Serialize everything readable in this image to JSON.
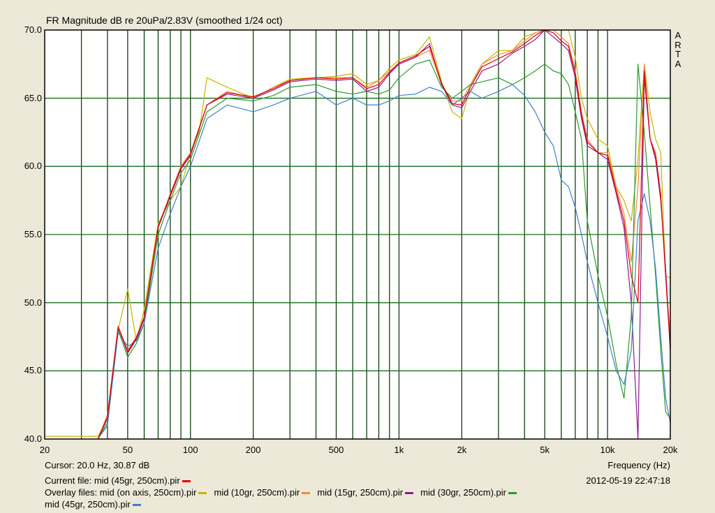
{
  "title": "FR Magnitude dB re 20uPa/2.83V (smoothed 1/24 oct)",
  "brand_letters": [
    "A",
    "R",
    "T",
    "A"
  ],
  "cursor_readout": "Cursor: 20.0 Hz, 30.87 dB",
  "current_file": {
    "label": "Current file:",
    "name": "mid (45gr, 250cm).pir",
    "color": "#e00000"
  },
  "timestamp": "2012-05-19  22:47:18",
  "overlay": {
    "label": "Overlay files:",
    "files": [
      {
        "name": "mid (on axis, 250cm).pir",
        "color": "#c8b400"
      },
      {
        "name": "mid (10gr, 250cm).pir",
        "color": "#f08840"
      },
      {
        "name": "mid (15gr, 250cm).pir",
        "color": "#8c1a8c"
      },
      {
        "name": "mid (30gr, 250cm).pir",
        "color": "#2a9a2a"
      },
      {
        "name": "mid (45gr, 250cm).pir",
        "color": "#4080c8"
      }
    ]
  },
  "colors": {
    "plot_bg": "#ffffff",
    "grid_h": "#1d6e1d",
    "grid_v": "#0f3f0f",
    "frame": "#000000"
  },
  "chart_data": {
    "type": "line",
    "title": "FR Magnitude dB re 20uPa/2.83V (smoothed 1/24 oct)",
    "xlabel": "Frequency (Hz)",
    "ylabel": "",
    "xscale": "log",
    "xlim": [
      20,
      20000
    ],
    "ylim": [
      40,
      70
    ],
    "grid": true,
    "x_ticks": [
      20,
      50,
      100,
      200,
      500,
      1000,
      2000,
      5000,
      10000,
      20000
    ],
    "x_tick_labels": [
      "20",
      "50",
      "100",
      "200",
      "500",
      "1k",
      "2k",
      "5k",
      "10k",
      "20k"
    ],
    "y_ticks": [
      40,
      45,
      50,
      55,
      60,
      65,
      70
    ],
    "y_tick_labels": [
      "40.0",
      "45.0",
      "50.0",
      "55.0",
      "60.0",
      "65.0",
      "70.0"
    ],
    "series": [
      {
        "name": "mid (on axis, 250cm).pir",
        "color": "#c8b400",
        "x": [
          20,
          28,
          36,
          40,
          45,
          50,
          55,
          60,
          70,
          80,
          90,
          100,
          110,
          120,
          150,
          200,
          250,
          300,
          400,
          500,
          600,
          700,
          800,
          900,
          1000,
          1200,
          1400,
          1600,
          1800,
          2000,
          2200,
          2500,
          3000,
          3500,
          4000,
          4500,
          5000,
          5500,
          6000,
          6500,
          7000,
          7500,
          8000,
          9000,
          10000,
          11000,
          12000,
          13000,
          14000,
          15000,
          16000,
          17000,
          18000,
          19000,
          20000
        ],
        "y": [
          40.2,
          40.2,
          40.2,
          41.5,
          48.0,
          51.0,
          47.2,
          49.5,
          55.8,
          57.5,
          58.5,
          61.0,
          62.5,
          66.5,
          65.8,
          65.0,
          65.8,
          66.4,
          66.5,
          66.6,
          66.8,
          66.0,
          66.3,
          67.2,
          67.8,
          68.2,
          69.5,
          66.2,
          64.0,
          63.5,
          65.8,
          67.5,
          68.5,
          68.5,
          69.5,
          69.8,
          70.0,
          70.0,
          70.0,
          70.0,
          68.0,
          65.0,
          63.5,
          62.0,
          61.5,
          58.5,
          57.5,
          56.0,
          60.5,
          67.5,
          64.0,
          62.0,
          61.0,
          52.0,
          51.8
        ]
      },
      {
        "name": "mid (10gr, 250cm).pir",
        "color": "#f08840",
        "x": [
          36,
          40,
          45,
          50,
          55,
          60,
          70,
          80,
          90,
          100,
          120,
          150,
          200,
          250,
          300,
          400,
          500,
          600,
          700,
          800,
          900,
          1000,
          1200,
          1400,
          1600,
          1800,
          2000,
          2200,
          2500,
          3000,
          3500,
          4000,
          4500,
          5000,
          5500,
          6000,
          6500,
          7000,
          7500,
          8000,
          9000,
          10000,
          11000,
          12000,
          13000,
          14000,
          15000,
          16000,
          17000,
          18000,
          19000,
          20000
        ],
        "y": [
          40.0,
          41.8,
          48.3,
          46.5,
          47.5,
          49.0,
          55.5,
          58.0,
          60.0,
          61.0,
          64.5,
          65.5,
          65.0,
          65.8,
          66.3,
          66.5,
          66.5,
          66.5,
          65.8,
          66.3,
          67.0,
          67.5,
          68.0,
          68.5,
          66.0,
          64.8,
          64.8,
          66.0,
          67.5,
          68.2,
          68.5,
          69.2,
          69.8,
          70.0,
          70.0,
          69.5,
          69.0,
          67.0,
          64.0,
          62.0,
          61.0,
          61.0,
          58.5,
          56.5,
          53.0,
          58.5,
          67.5,
          62.0,
          61.0,
          58.0,
          52.0,
          47.5
        ]
      },
      {
        "name": "mid (15gr, 250cm).pir",
        "color": "#8c1a8c",
        "x": [
          36,
          40,
          45,
          50,
          55,
          60,
          70,
          80,
          90,
          100,
          120,
          150,
          200,
          250,
          300,
          400,
          500,
          600,
          700,
          800,
          900,
          1000,
          1200,
          1400,
          1600,
          1800,
          2000,
          2200,
          2500,
          3000,
          3500,
          4000,
          4500,
          5000,
          5500,
          6000,
          6500,
          7000,
          7500,
          8000,
          9000,
          10000,
          11000,
          12000,
          13000,
          14000,
          15000,
          16000,
          17000,
          18000,
          19000,
          20000
        ],
        "y": [
          40.0,
          41.5,
          48.2,
          46.3,
          47.3,
          48.8,
          55.5,
          57.8,
          59.8,
          60.8,
          64.5,
          65.3,
          65.0,
          65.6,
          66.2,
          66.4,
          66.3,
          66.4,
          65.5,
          65.8,
          66.8,
          67.5,
          68.0,
          69.0,
          66.0,
          64.5,
          64.3,
          65.5,
          67.0,
          67.5,
          68.3,
          68.8,
          69.3,
          70.0,
          69.5,
          69.0,
          68.5,
          66.5,
          63.5,
          61.5,
          61.0,
          60.5,
          58.0,
          55.5,
          50.0,
          40.0,
          66.5,
          62.0,
          60.5,
          57.5,
          52.5,
          46.5
        ]
      },
      {
        "name": "mid (30gr, 250cm).pir",
        "color": "#2a9a2a",
        "x": [
          36,
          40,
          45,
          50,
          55,
          60,
          70,
          80,
          90,
          100,
          120,
          150,
          200,
          250,
          300,
          400,
          500,
          600,
          700,
          800,
          900,
          1000,
          1200,
          1400,
          1600,
          1800,
          2000,
          2200,
          2500,
          3000,
          3500,
          4000,
          4500,
          5000,
          5500,
          6000,
          6500,
          7000,
          7500,
          8000,
          9000,
          10000,
          11000,
          12000,
          13000,
          14000,
          15000,
          16000,
          17000,
          18000,
          19000,
          20000
        ],
        "y": [
          40.0,
          41.2,
          48.0,
          46.0,
          47.0,
          48.5,
          55.0,
          57.5,
          59.5,
          60.5,
          64.0,
          65.0,
          64.8,
          65.2,
          65.8,
          66.0,
          65.5,
          65.3,
          65.5,
          65.3,
          65.6,
          66.5,
          67.5,
          67.8,
          65.8,
          65.0,
          65.5,
          66.0,
          66.2,
          66.5,
          66.0,
          66.5,
          67.0,
          67.5,
          67.0,
          66.8,
          66.0,
          64.0,
          62.0,
          56.0,
          52.0,
          49.0,
          45.5,
          43.0,
          49.0,
          67.5,
          62.5,
          57.0,
          52.0,
          46.5,
          42.0,
          41.5
        ]
      },
      {
        "name": "mid (45gr, 250cm).pir",
        "color": "#4080c8",
        "x": [
          36,
          40,
          45,
          50,
          55,
          60,
          70,
          80,
          90,
          100,
          120,
          150,
          200,
          250,
          300,
          400,
          500,
          600,
          700,
          800,
          900,
          1000,
          1200,
          1400,
          1600,
          1800,
          2000,
          2200,
          2500,
          3000,
          3500,
          4000,
          4500,
          5000,
          5500,
          6000,
          6500,
          7000,
          7500,
          8000,
          9000,
          10000,
          11000,
          12000,
          13000,
          14000,
          15000,
          16000,
          17000,
          18000,
          19000,
          20000
        ],
        "y": [
          40.0,
          41.0,
          47.8,
          46.8,
          47.2,
          48.5,
          54.0,
          56.5,
          58.5,
          60.0,
          63.5,
          64.5,
          64.0,
          64.5,
          65.0,
          65.5,
          64.5,
          65.0,
          64.5,
          64.5,
          64.8,
          65.2,
          65.3,
          65.8,
          65.5,
          64.5,
          65.0,
          65.5,
          65.0,
          65.5,
          66.0,
          65.2,
          64.0,
          62.5,
          61.5,
          59.0,
          58.5,
          57.0,
          55.0,
          53.0,
          50.0,
          47.5,
          45.0,
          44.0,
          46.5,
          56.0,
          58.0,
          56.0,
          52.5,
          47.5,
          43.0,
          41.2
        ]
      },
      {
        "name": "mid (45gr, 250cm).pir",
        "color": "#e00000",
        "x": [
          36,
          40,
          45,
          50,
          55,
          60,
          70,
          80,
          90,
          100,
          120,
          150,
          200,
          250,
          300,
          400,
          500,
          600,
          700,
          800,
          900,
          1000,
          1200,
          1400,
          1600,
          1800,
          2000,
          2200,
          2500,
          3000,
          3500,
          4000,
          4500,
          5000,
          5500,
          6000,
          6500,
          7000,
          7500,
          8000,
          9000,
          10000,
          11000,
          12000,
          13000,
          14000,
          15000,
          16000,
          17000,
          18000,
          19000,
          20000
        ],
        "y": [
          40.0,
          41.6,
          48.2,
          46.4,
          47.4,
          48.9,
          55.6,
          57.9,
          59.9,
          60.9,
          64.5,
          65.4,
          65.1,
          65.7,
          66.3,
          66.5,
          66.4,
          66.5,
          65.7,
          66.0,
          66.9,
          67.6,
          68.1,
          68.8,
          66.1,
          64.6,
          64.5,
          65.8,
          67.3,
          67.9,
          68.4,
          69.0,
          69.6,
          70.0,
          69.8,
          69.2,
          68.8,
          66.8,
          63.8,
          61.8,
          61.0,
          60.8,
          58.2,
          56.0,
          52.0,
          50.0,
          67.0,
          62.0,
          60.8,
          57.8,
          52.0,
          46.5
        ]
      }
    ]
  }
}
